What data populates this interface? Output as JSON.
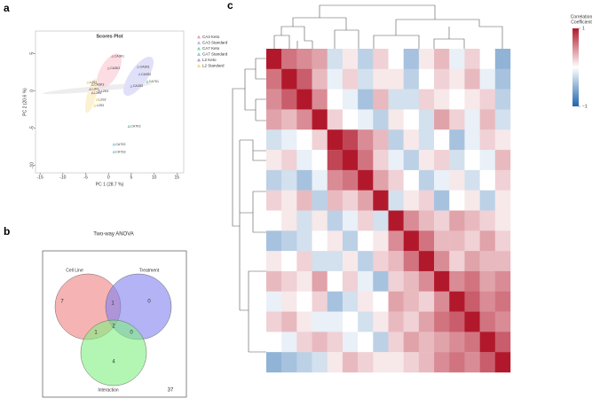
{
  "panel_labels": [
    "a",
    "b",
    "c"
  ],
  "chart_data": [
    {
      "type": "scatter",
      "title": "Scores Plot",
      "x_label": "PC 1 (28.7 %)",
      "y_label": "PC 2 (20.6 %)",
      "xlim": [
        -16,
        16.5
      ],
      "ylim": [
        -11,
        8
      ],
      "xticks": [
        -15,
        -10,
        -5,
        0,
        5,
        10,
        15
      ],
      "yticks": [
        -10,
        -5,
        0,
        5
      ],
      "series": [
        {
          "name": "CA3 Keto",
          "color": "#e8637a",
          "x": [
            0.9,
            0,
            -3.5
          ],
          "values": [
            4.6,
            3.0,
            0.8
          ],
          "point_labels": [
            "CA3K1",
            "CA3K2",
            "CA3K3"
          ]
        },
        {
          "name": "CA3 Standard",
          "color": "#8888dd",
          "x": [
            6.5,
            6.8,
            5
          ],
          "values": [
            3.2,
            2.2,
            0.6
          ],
          "point_labels": [
            "CA3S1",
            "CA3S2",
            "CA3S3"
          ]
        },
        {
          "name": "CA7 Keto",
          "color": "#3cb371",
          "x": [
            8.5,
            4.5
          ],
          "values": [
            1.2,
            -4.8
          ],
          "point_labels": [
            "CA7K1",
            "CA7K3"
          ]
        },
        {
          "name": "CA7 Standard",
          "color": "#33aacc",
          "x": [
            1.2,
            1.2
          ],
          "values": [
            -7.2,
            -8.2
          ],
          "point_labels": [
            "CA7S2",
            "CA7S3"
          ]
        },
        {
          "name": "L2 Keto",
          "color": "#9b59b6",
          "x": [
            -4,
            -3.5,
            -2
          ],
          "values": [
            0.2,
            -0.3,
            -0.1
          ],
          "point_labels": [
            "L2K1",
            "L2K2",
            "L2K3"
          ]
        },
        {
          "name": "L2 Standard",
          "color": "#e6c229",
          "x": [
            -4.5,
            -2.5,
            -3
          ],
          "values": [
            1.1,
            -1.2,
            -2
          ],
          "point_labels": [
            "L2S1",
            "L2S2",
            "L2S3"
          ]
        }
      ]
    },
    {
      "type": "venn",
      "title": "Two-way ANOVA",
      "sets": [
        "Cell Line",
        "Treatment",
        "Interaction"
      ],
      "regions": [
        {
          "sets": [
            0
          ],
          "value": 7
        },
        {
          "sets": [
            1
          ],
          "value": 0
        },
        {
          "sets": [
            2
          ],
          "value": 4
        },
        {
          "sets": [
            0,
            1
          ],
          "value": 1
        },
        {
          "sets": [
            0,
            2
          ],
          "value": 1
        },
        {
          "sets": [
            1,
            2
          ],
          "value": 0
        },
        {
          "sets": [
            0,
            1,
            2
          ],
          "value": 2
        }
      ],
      "outside": 37
    },
    {
      "type": "heatmap",
      "colorbar_title": [
        "Correlation",
        "Coefficient"
      ],
      "zlim": [
        -1,
        1
      ],
      "zticks": [
        {
          "value": -1,
          "label": "−1"
        },
        1
      ],
      "values": [
        [
          1,
          0.6,
          0.5,
          0.4,
          -0.2,
          0.1,
          -0.3,
          0.2,
          0,
          -0.4,
          0.1,
          0.3,
          -0.1,
          0.2,
          0,
          -0.5
        ],
        [
          0.6,
          1,
          0.7,
          0.3,
          -0.1,
          0.2,
          -0.2,
          0.1,
          0.1,
          -0.3,
          0,
          0.2,
          0.1,
          0.3,
          -0.1,
          -0.4
        ],
        [
          0.5,
          0.7,
          1,
          0.5,
          0,
          -0.1,
          -0.4,
          0.3,
          -0.2,
          -0.2,
          0.2,
          0.1,
          0,
          0.1,
          0.2,
          -0.3
        ],
        [
          0.4,
          0.3,
          0.5,
          1,
          0.2,
          0,
          -0.1,
          -0.3,
          0.1,
          0,
          -0.2,
          0.4,
          0.2,
          -0.1,
          0.3,
          -0.2
        ],
        [
          -0.2,
          -0.1,
          0,
          0.2,
          1,
          0.8,
          0.5,
          0.3,
          -0.3,
          0.1,
          -0.2,
          0,
          -0.4,
          -0.1,
          0.2,
          0.1
        ],
        [
          0.1,
          0.2,
          -0.1,
          0,
          0.8,
          1,
          0.6,
          0.2,
          -0.1,
          -0.3,
          0.1,
          0.2,
          -0.2,
          0,
          -0.1,
          0.3
        ],
        [
          -0.3,
          -0.2,
          -0.4,
          -0.1,
          0.5,
          0.6,
          1,
          0.4,
          0.2,
          0,
          -0.3,
          -0.1,
          0.1,
          -0.2,
          0,
          0.2
        ],
        [
          0.2,
          0.1,
          0.3,
          -0.3,
          0.3,
          0.2,
          0.4,
          1,
          -0.2,
          0.1,
          0.2,
          -0.4,
          0,
          0.1,
          -0.3,
          0.1
        ],
        [
          0,
          0.1,
          -0.2,
          0.1,
          -0.3,
          -0.1,
          0.2,
          -0.2,
          1,
          0.5,
          0.3,
          0.2,
          0.4,
          0.3,
          0.2,
          0.1
        ],
        [
          -0.4,
          -0.3,
          -0.2,
          0,
          0.1,
          -0.3,
          0,
          0.1,
          0.5,
          1,
          0.6,
          0.3,
          0.3,
          0.2,
          0.4,
          0.2
        ],
        [
          0.1,
          0,
          0.2,
          -0.2,
          -0.2,
          0.1,
          -0.3,
          0.2,
          0.3,
          0.6,
          1,
          0.5,
          0.2,
          0.4,
          0.3,
          0.3
        ],
        [
          0.3,
          0.2,
          0.1,
          0.4,
          0,
          0.2,
          -0.1,
          -0.4,
          0.2,
          0.3,
          0.5,
          1,
          0.5,
          0.6,
          0.4,
          0.5
        ],
        [
          -0.1,
          0.1,
          0,
          0.2,
          -0.4,
          -0.2,
          0.1,
          0,
          0.4,
          0.3,
          0.2,
          0.5,
          1,
          0.7,
          0.5,
          0.6
        ],
        [
          0.2,
          0.3,
          0.1,
          -0.1,
          -0.1,
          0,
          -0.2,
          0.1,
          0.3,
          0.2,
          0.4,
          0.6,
          0.7,
          1,
          0.6,
          0.5
        ],
        [
          0,
          -0.1,
          0.2,
          0.3,
          0.2,
          -0.1,
          0,
          -0.3,
          0.2,
          0.4,
          0.3,
          0.4,
          0.5,
          0.6,
          1,
          0.7
        ],
        [
          -0.5,
          -0.4,
          -0.3,
          -0.2,
          0.1,
          0.3,
          0.2,
          0.1,
          0.1,
          0.2,
          0.3,
          0.5,
          0.6,
          0.5,
          0.7,
          1
        ]
      ]
    }
  ]
}
